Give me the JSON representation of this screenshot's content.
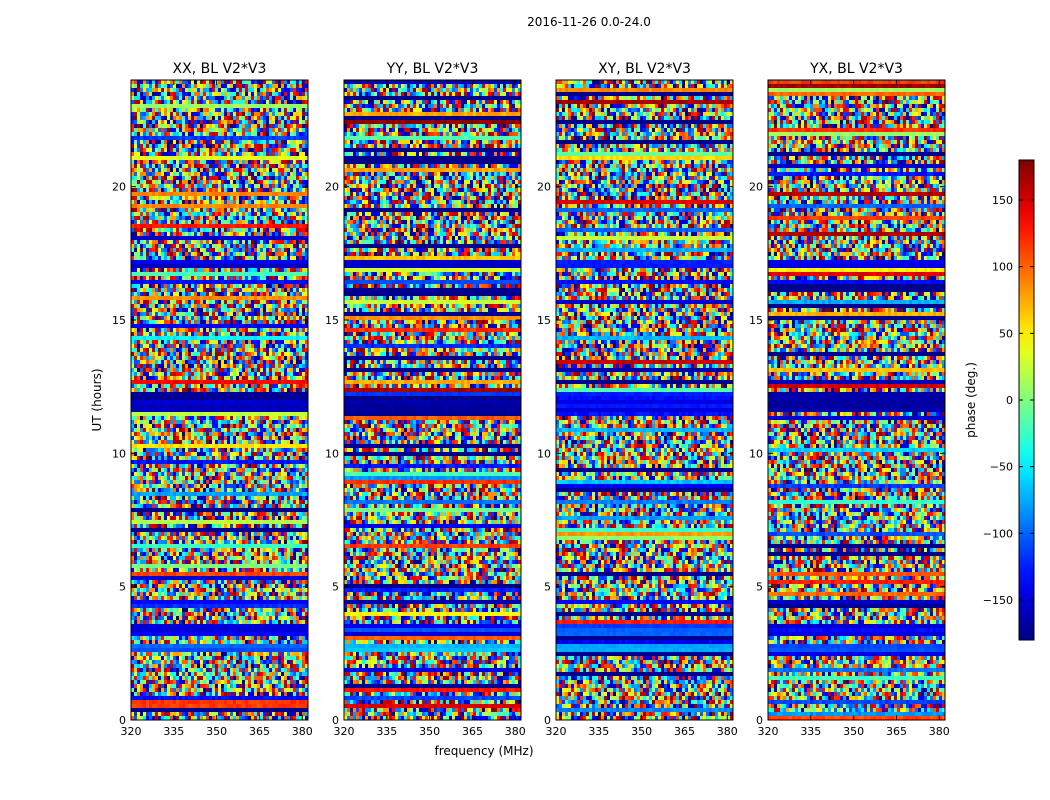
{
  "chart_data": {
    "type": "heatmap",
    "title": "2016-11-26 0.0-24.0",
    "xlabel": "frequency (MHz)",
    "ylabel": "UT (hours)",
    "xlim": [
      320,
      382
    ],
    "ylim": [
      0,
      24
    ],
    "xticks": [
      320,
      335,
      350,
      365,
      380
    ],
    "yticks": [
      0,
      5,
      10,
      15,
      20
    ],
    "panels": [
      {
        "title": "XX, BL V2*V3",
        "seed": 11
      },
      {
        "title": "YY, BL V2*V3",
        "seed": 23
      },
      {
        "title": "XY, BL V2*V3",
        "seed": 37
      },
      {
        "title": "YX, BL V2*V3",
        "seed": 53
      }
    ],
    "colorbar": {
      "label": "phase (deg.)",
      "vmin": -180,
      "vmax": 180,
      "ticks": [
        -150,
        -100,
        -50,
        0,
        50,
        100,
        150
      ],
      "colormap": "jet"
    },
    "flagged_bands": [
      {
        "from": 11.6,
        "to": 12.3,
        "value": -175
      },
      {
        "from": 16.9,
        "to": 17.2,
        "value": -160
      },
      {
        "from": 16.3,
        "to": 16.5,
        "value": -160
      },
      {
        "from": 4.3,
        "to": 4.5,
        "value": -165
      },
      {
        "from": 3.2,
        "to": 3.6,
        "value": -150
      },
      {
        "from": 2.5,
        "to": 2.8,
        "value": -120
      }
    ]
  }
}
